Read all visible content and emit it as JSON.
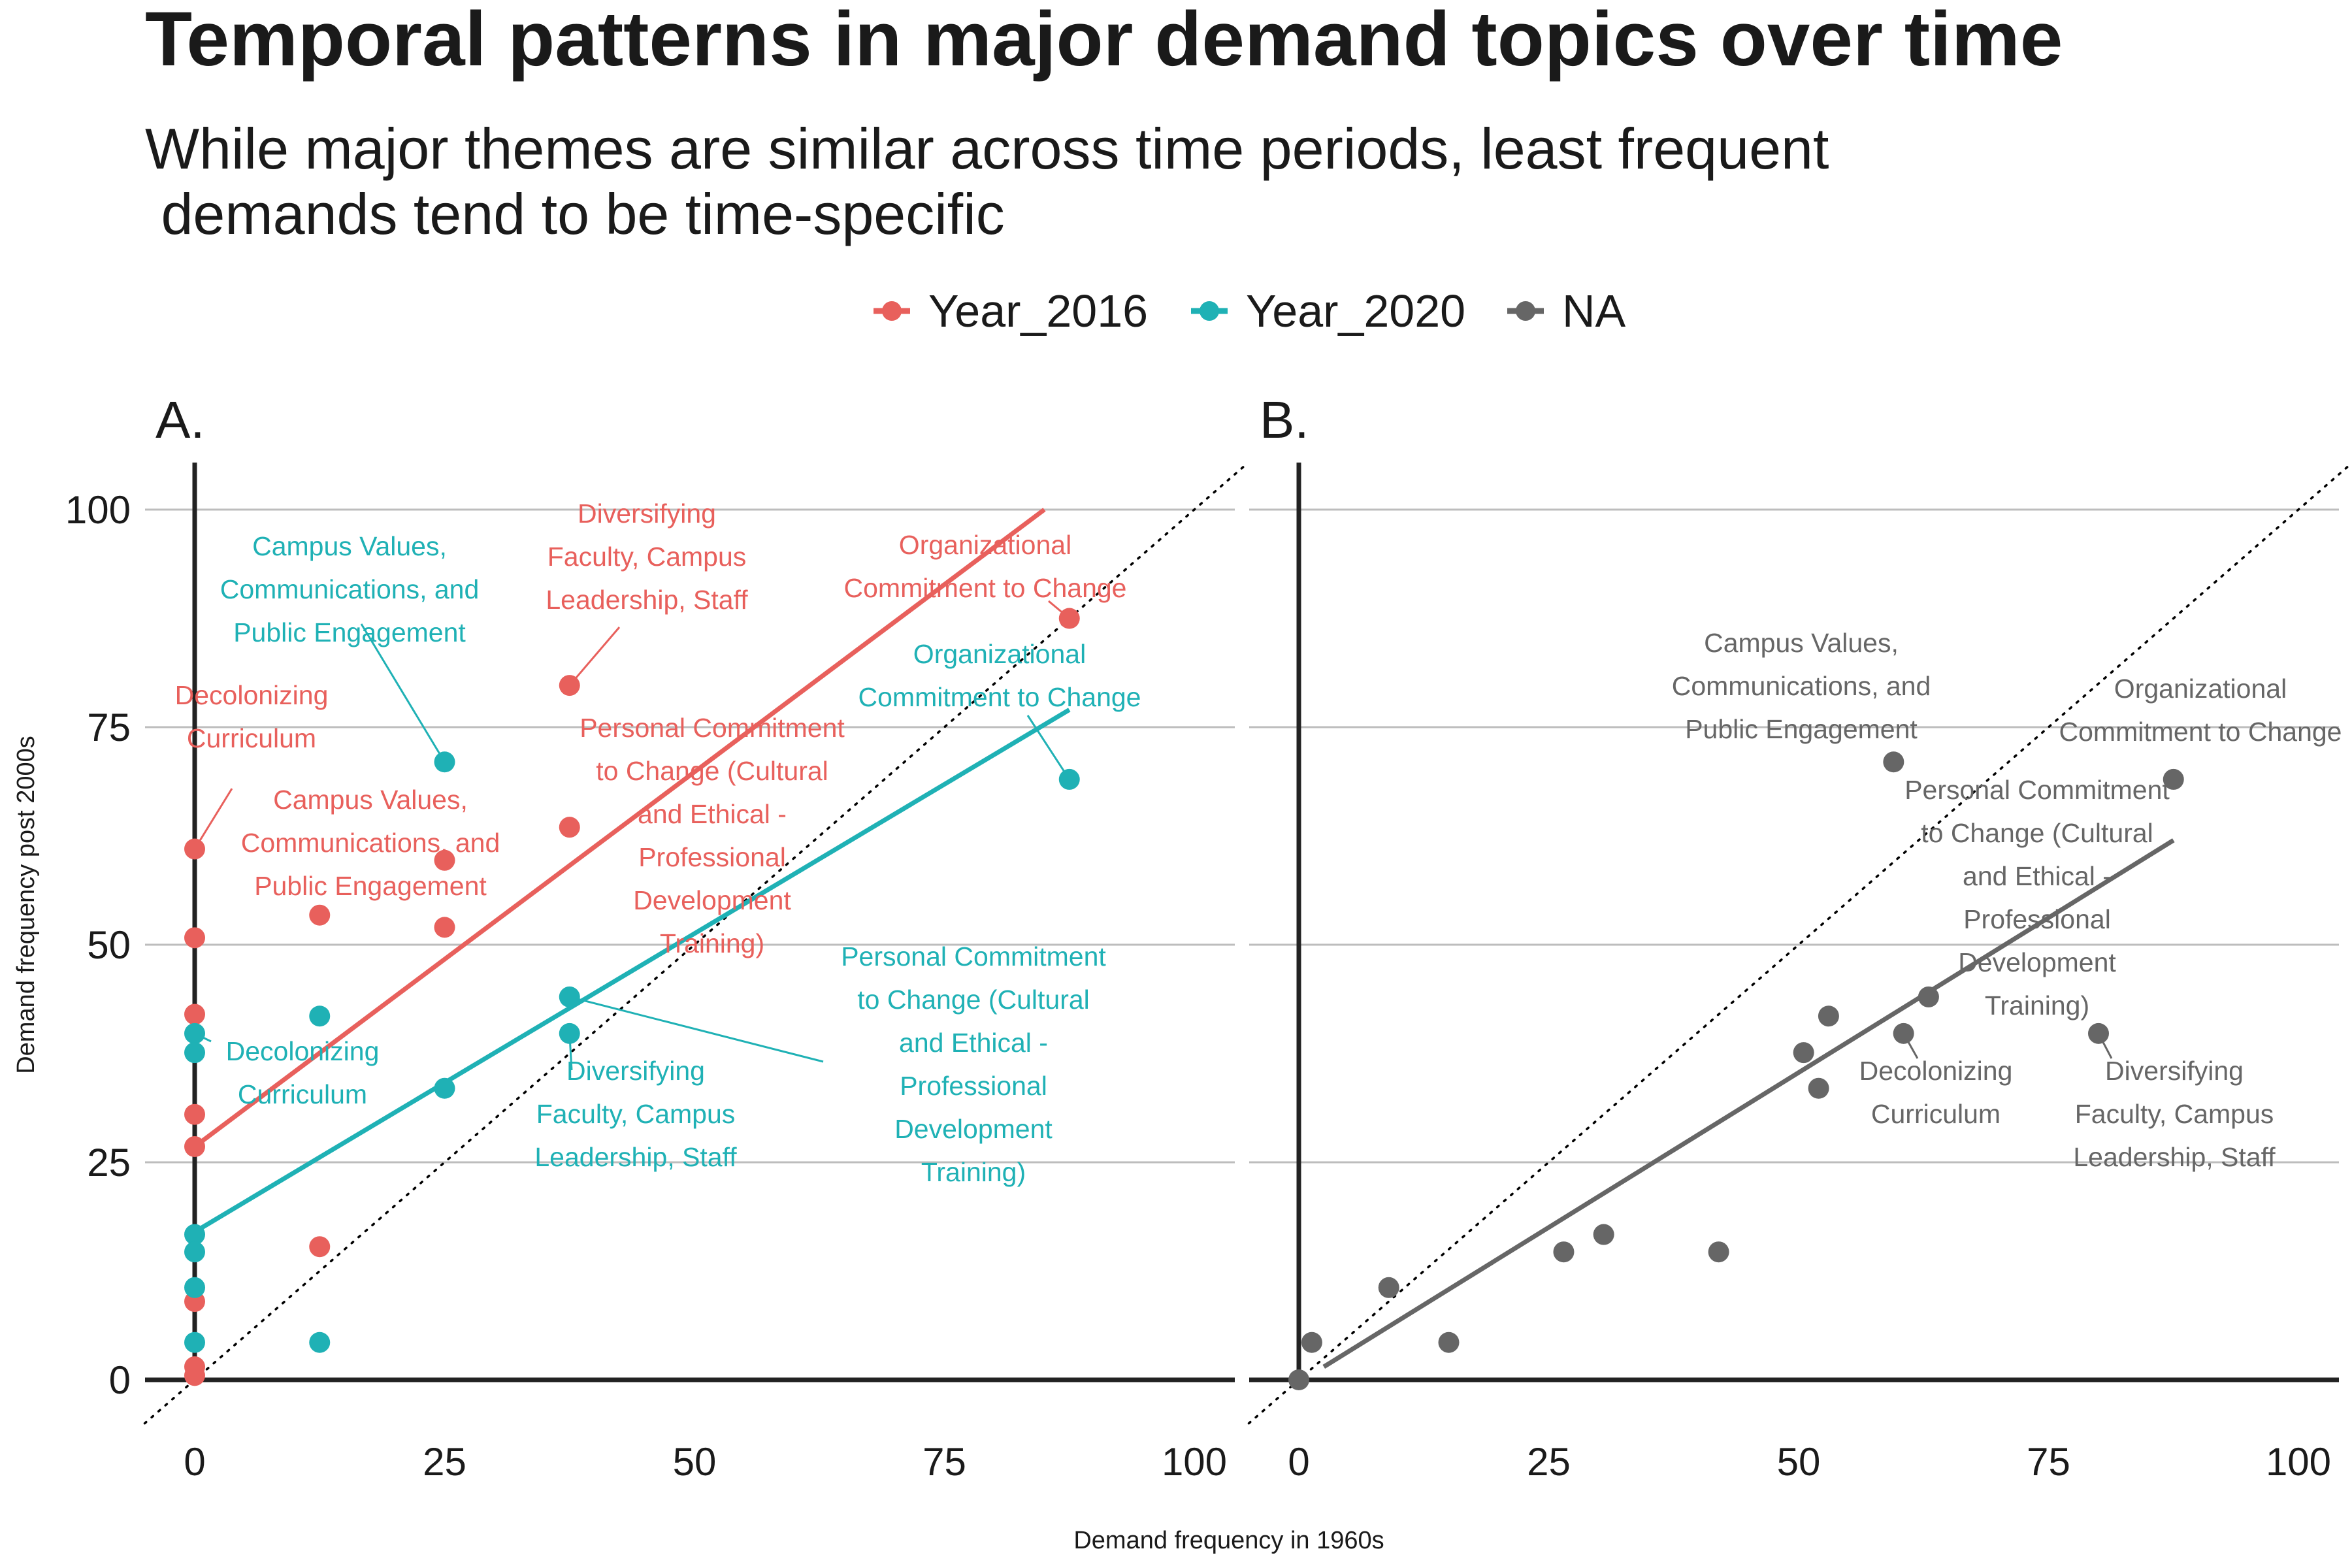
{
  "title": "Temporal patterns in major demand topics over time",
  "subtitle_lines": [
    "While major themes are similar across time periods, least frequent",
    " demands tend to be time-specific"
  ],
  "legend": [
    {
      "label": "Year_2016",
      "color": "#E8605C"
    },
    {
      "label": "Year_2020",
      "color": "#1FB1B5"
    },
    {
      "label": "NA",
      "color": "#666666"
    }
  ],
  "xlabel": "Demand frequency in 1960s",
  "ylabel": "Demand frequency post 2000s",
  "chart_data": [
    {
      "type": "scatter",
      "panel": "A.",
      "xlim": [
        -5,
        105
      ],
      "ylim": [
        -5,
        105
      ],
      "x_ticks": [
        0,
        25,
        50,
        75,
        100
      ],
      "y_ticks": [
        0,
        25,
        50,
        75,
        100
      ],
      "grid": "horizontal major",
      "reference_line": "y = x (dotted)",
      "series": [
        {
          "name": "Year_2016",
          "color": "#E8605C",
          "points": [
            [
              0,
              61
            ],
            [
              0,
              50.8
            ],
            [
              0,
              42
            ],
            [
              0,
              30.5
            ],
            [
              0,
              26.8
            ],
            [
              0,
              9
            ],
            [
              0,
              1.5
            ],
            [
              0,
              0.5
            ],
            [
              12.5,
              53.4
            ],
            [
              12.5,
              15.3
            ],
            [
              25,
              59.7
            ],
            [
              25,
              52
            ],
            [
              37.5,
              79.8
            ],
            [
              37.5,
              63.5
            ],
            [
              87.5,
              87.5
            ]
          ],
          "trend": [
            [
              0,
              26.8
            ],
            [
              85,
              100
            ]
          ]
        },
        {
          "name": "Year_2020",
          "color": "#1FB1B5",
          "points": [
            [
              0,
              39.8
            ],
            [
              0,
              37.6
            ],
            [
              0,
              16.7
            ],
            [
              0,
              14.7
            ],
            [
              0,
              10.6
            ],
            [
              0,
              4.3
            ],
            [
              12.5,
              41.8
            ],
            [
              12.5,
              4.3
            ],
            [
              25,
              71
            ],
            [
              25,
              33.5
            ],
            [
              37.5,
              44
            ],
            [
              37.5,
              39.8
            ],
            [
              87.5,
              69
            ]
          ],
          "trend": [
            [
              0,
              17
            ],
            [
              87.5,
              77
            ]
          ]
        }
      ],
      "annotations": [
        {
          "series": "Year_2020",
          "lines": [
            "Campus Values,",
            "Communications, and",
            "Public Engagement"
          ],
          "point": [
            25,
            71
          ]
        },
        {
          "series": "Year_2016",
          "lines": [
            "Diversifying",
            "Faculty, Campus",
            "Leadership, Staff"
          ],
          "point": [
            37.5,
            79.8
          ]
        },
        {
          "series": "Year_2016",
          "lines": [
            "Organizational",
            "Commitment to Change"
          ],
          "point": [
            87.5,
            87.5
          ]
        },
        {
          "series": "Year_2020",
          "lines": [
            "Organizational",
            "Commitment to Change"
          ],
          "point": [
            87.5,
            69
          ]
        },
        {
          "series": "Year_2016",
          "lines": [
            "Decolonizing",
            "Curriculum"
          ],
          "point": [
            0,
            61
          ]
        },
        {
          "series": "Year_2016",
          "lines": [
            "Personal Commitment",
            "to Change (Cultural",
            "and Ethical -",
            "Professional",
            "Development",
            "Training)"
          ],
          "point": [
            37.5,
            63.5
          ]
        },
        {
          "series": "Year_2016",
          "lines": [
            "Campus Values,",
            "Communications, and",
            "Public Engagement"
          ],
          "point": [
            25,
            59.7
          ]
        },
        {
          "series": "Year_2020",
          "lines": [
            "Decolonizing",
            "Curriculum"
          ],
          "point": [
            0,
            39.8
          ]
        },
        {
          "series": "Year_2020",
          "lines": [
            "Diversifying",
            "Faculty, Campus",
            "Leadership, Staff"
          ],
          "point": [
            37.5,
            39.8
          ]
        },
        {
          "series": "Year_2020",
          "lines": [
            "Personal Commitment",
            "to Change (Cultural",
            "and Ethical -",
            "Professional",
            "Development",
            "Training)"
          ],
          "point": [
            37.5,
            44
          ]
        }
      ]
    },
    {
      "type": "scatter",
      "panel": "B.",
      "xlim": [
        -5,
        105
      ],
      "ylim": [
        -5,
        105
      ],
      "x_ticks": [
        0,
        25,
        50,
        75,
        100
      ],
      "y_ticks": [
        0,
        25,
        50,
        75,
        100
      ],
      "grid": "horizontal major",
      "reference_line": "y = x (dotted)",
      "series": [
        {
          "name": "NA",
          "color": "#666666",
          "points": [
            [
              0,
              0
            ],
            [
              1.3,
              4.3
            ],
            [
              9,
              10.6
            ],
            [
              15,
              4.3
            ],
            [
              26.5,
              14.7
            ],
            [
              30.5,
              16.7
            ],
            [
              42,
              14.7
            ],
            [
              50.5,
              37.6
            ],
            [
              52,
              33.5
            ],
            [
              53,
              41.8
            ],
            [
              59.5,
              71
            ],
            [
              60.5,
              39.8
            ],
            [
              63,
              44
            ],
            [
              80,
              39.8
            ],
            [
              87.5,
              69
            ]
          ],
          "trend": [
            [
              2.5,
              1.5
            ],
            [
              87.5,
              62
            ]
          ]
        }
      ],
      "annotations": [
        {
          "series": "NA",
          "lines": [
            "Campus Values,",
            "Communications, and",
            "Public Engagement"
          ],
          "point": [
            59.5,
            71
          ]
        },
        {
          "series": "NA",
          "lines": [
            "Organizational",
            "Commitment to Change"
          ],
          "point": [
            87.5,
            69
          ]
        },
        {
          "series": "NA",
          "lines": [
            "Personal Commitment",
            "to Change (Cultural",
            "and Ethical -",
            "Professional",
            "Development",
            "Training)"
          ],
          "point": [
            63,
            44
          ]
        },
        {
          "series": "NA",
          "lines": [
            "Decolonizing",
            "Curriculum"
          ],
          "point": [
            60.5,
            39.8
          ]
        },
        {
          "series": "NA",
          "lines": [
            "Diversifying",
            "Faculty, Campus",
            "Leadership, Staff"
          ],
          "point": [
            80,
            39.8
          ]
        }
      ]
    }
  ]
}
